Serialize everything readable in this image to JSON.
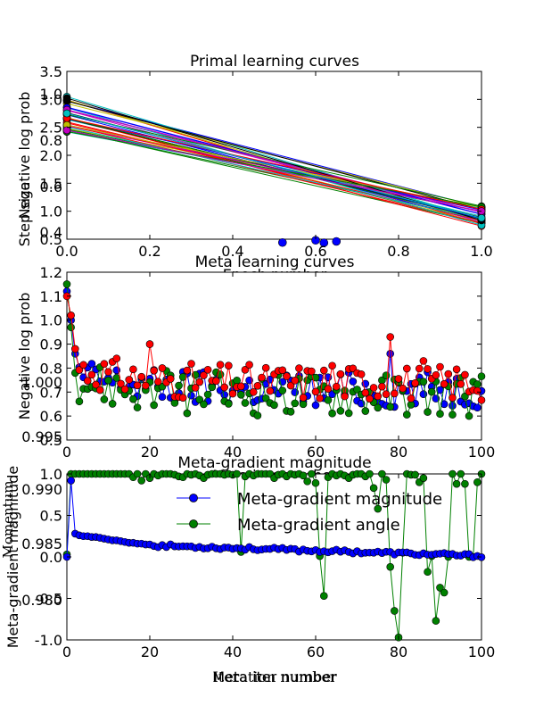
{
  "chart_data": [
    {
      "type": "line",
      "title": "Primal learning curves",
      "xlabel": "Epoch number",
      "ylabel": "Negative log prob",
      "overlay_ylabel": "Step size",
      "xlim": [
        0,
        1
      ],
      "ylim": [
        0.5,
        3.5
      ],
      "xticks": [
        "0.0",
        "0.2",
        "0.4",
        "0.6",
        "0.8",
        "1.0"
      ],
      "yticks": [
        "0.5",
        "1.0",
        "1.5",
        "2.0",
        "2.5",
        "3.0",
        "3.5"
      ],
      "overlay_yticks": [
        "0.4",
        "0.6",
        "0.8",
        "1.0"
      ],
      "x": [
        0,
        1
      ],
      "start_range": [
        2.4,
        3.05
      ],
      "end_range": [
        0.72,
        1.1
      ],
      "num_curves": 40,
      "colors": [
        "#0000ff",
        "#008000",
        "#ff0000",
        "#00bfbf",
        "#bf00bf",
        "#bfbf00",
        "#000000"
      ],
      "blue_dots": [
        [
          0.52,
          0.44
        ],
        [
          0.535,
          0.38
        ],
        [
          0.6,
          0.48
        ],
        [
          0.62,
          0.43
        ],
        [
          0.635,
          0.38
        ],
        [
          0.65,
          0.46
        ]
      ]
    },
    {
      "type": "line",
      "title": "Meta learning curves",
      "xlabel": "Meta iter number",
      "ylabel": "Negative log prob",
      "xlim": [
        0,
        100
      ],
      "ylim": [
        0.5,
        1.2
      ],
      "xticks": [
        "0",
        "20",
        "40",
        "60",
        "80",
        "100"
      ],
      "yticks": [
        "0.5",
        "0.6",
        "0.7",
        "0.8",
        "0.9",
        "1.0",
        "1.1",
        "1.2"
      ],
      "overlay_yticks": [
        "0.995",
        "1.000"
      ],
      "overlay_ylim": [
        0.995,
        1.005
      ],
      "series": [
        {
          "color": "#ff0000",
          "start": [
            1.1,
            1.02,
            0.88
          ],
          "base": 0.74,
          "amp": 0.025
        },
        {
          "color": "#0000ff",
          "start": [
            1.12,
            1.0,
            0.86
          ],
          "base": 0.71,
          "amp": 0.025
        },
        {
          "color": "#008000",
          "start": [
            1.15,
            0.97,
            0.78
          ],
          "base": 0.69,
          "amp": 0.03
        }
      ],
      "spikes": [
        {
          "x": 20,
          "y": 0.9,
          "s": 0
        },
        {
          "x": 78,
          "y": 0.93,
          "s": 0
        },
        {
          "x": 78,
          "y": 0.86,
          "s": 1
        },
        {
          "x": 86,
          "y": 0.83,
          "s": 0
        },
        {
          "x": 64,
          "y": 0.81,
          "s": 0
        }
      ]
    },
    {
      "type": "line",
      "title": "Meta-gradient magnitude",
      "xlabel": "Meta iter number",
      "ylabel": "Meta-gradient magnitude",
      "overlay_xlabel": "Iteration number",
      "overlay_ylabel": "Momentum",
      "xlim": [
        0,
        100
      ],
      "ylim": [
        -1.0,
        1.0
      ],
      "xticks": [
        "0",
        "20",
        "40",
        "60",
        "80",
        "100"
      ],
      "yticks": [
        "-1.0",
        "-0.5",
        "0.0",
        "0.5",
        "1.0"
      ],
      "overlay_yticks": [
        "0.980",
        "0.985",
        "0.990"
      ],
      "series": [
        {
          "name": "Meta-gradient magnitude",
          "color": "#0000ff"
        },
        {
          "name": "Meta-gradient angle",
          "color": "#008000"
        }
      ],
      "blue_values": [
        0.0,
        0.92,
        0.28,
        0.26,
        0.25,
        0.25,
        0.24,
        0.24,
        0.23,
        0.22,
        0.21,
        0.2,
        0.2,
        0.19,
        0.18,
        0.17,
        0.17,
        0.16,
        0.16,
        0.15,
        0.15
      ],
      "green_values": [
        0.03,
        1.0,
        1.0,
        1.0,
        1.0,
        1.0,
        1.0,
        1.0,
        1.0,
        1.0,
        1.0,
        1.0,
        1.0,
        1.0,
        1.0,
        1.0,
        0.96,
        1.0,
        0.92,
        1.0,
        0.95,
        1.0,
        0.98,
        1.0,
        1.0,
        1.0,
        0.99,
        0.97,
        0.96,
        1.0,
        0.99,
        1.0,
        0.98,
        0.95,
        0.99,
        1.0,
        1.0,
        1.0,
        0.99,
        1.0,
        0.99,
        1.0,
        0.06,
        0.97,
        1.0,
        0.98,
        1.0,
        1.0,
        1.0,
        1.0,
        0.95,
        0.99,
        1.0,
        0.97,
        1.0,
        0.99,
        1.0,
        0.98,
        0.91,
        1.0,
        0.89,
        0.01,
        -0.47,
        0.96,
        1.0,
        0.98,
        1.0,
        0.98,
        0.95,
        0.99,
        1.0,
        1.0,
        0.97,
        1.0,
        0.83,
        0.58,
        1.0,
        0.93,
        -0.12,
        -0.65,
        -0.97,
        0.05,
        1.0,
        0.99,
        0.99,
        0.9,
        0.95,
        -0.18,
        0.01,
        -0.77,
        -0.37,
        -0.43,
        0.0,
        1.0,
        0.88,
        1.0,
        0.88,
        0.0,
        0.0,
        0.9,
        1.0
      ]
    }
  ]
}
